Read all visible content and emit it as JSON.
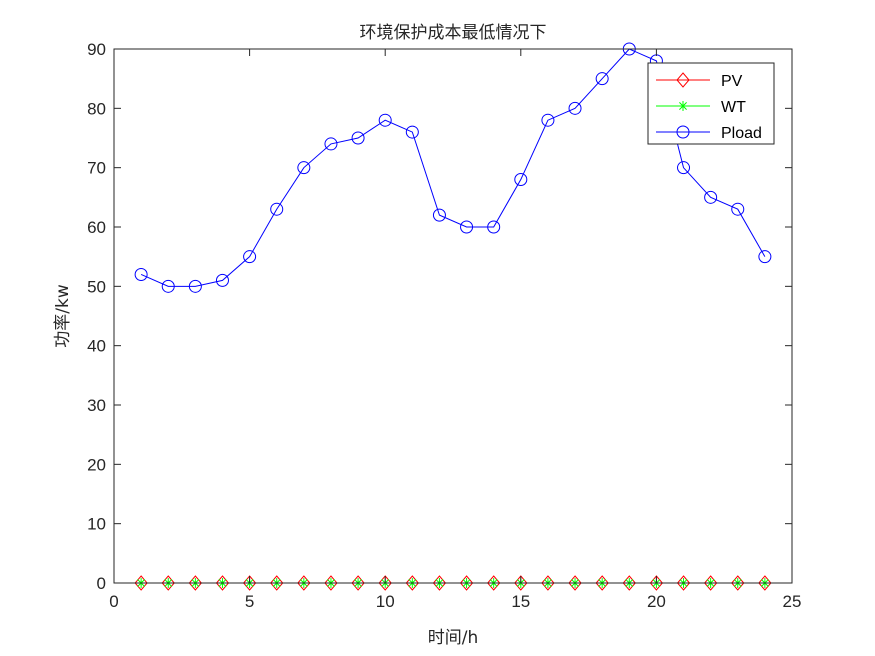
{
  "chart_data": {
    "type": "line",
    "title": "环境保护成本最低情况下",
    "xlabel": "时间/h",
    "ylabel": "功率/kw",
    "xlim": [
      0,
      25
    ],
    "ylim": [
      0,
      90
    ],
    "xticks": [
      0,
      5,
      10,
      15,
      20,
      25
    ],
    "yticks": [
      0,
      10,
      20,
      30,
      40,
      50,
      60,
      70,
      80,
      90
    ],
    "grid": false,
    "legend_position": "top-right",
    "x": [
      1,
      2,
      3,
      4,
      5,
      6,
      7,
      8,
      9,
      10,
      11,
      12,
      13,
      14,
      15,
      16,
      17,
      18,
      19,
      20,
      21,
      22,
      23,
      24
    ],
    "series": [
      {
        "name": "PV",
        "color": "#ff0000",
        "marker": "diamond",
        "values": [
          0,
          0,
          0,
          0,
          0,
          0,
          0,
          0,
          0,
          0,
          0,
          0,
          0,
          0,
          0,
          0,
          0,
          0,
          0,
          0,
          0,
          0,
          0,
          0
        ]
      },
      {
        "name": "WT",
        "color": "#00ff00",
        "marker": "asterisk",
        "values": [
          0,
          0,
          0,
          0,
          0,
          0,
          0,
          0,
          0,
          0,
          0,
          0,
          0,
          0,
          0,
          0,
          0,
          0,
          0,
          0,
          0,
          0,
          0,
          0
        ]
      },
      {
        "name": "Pload",
        "color": "#0000ff",
        "marker": "circle",
        "values": [
          52,
          50,
          50,
          51,
          55,
          63,
          70,
          74,
          75,
          78,
          76,
          62,
          60,
          60,
          68,
          78,
          80,
          85,
          90,
          88,
          70,
          65,
          63,
          55
        ]
      }
    ]
  }
}
